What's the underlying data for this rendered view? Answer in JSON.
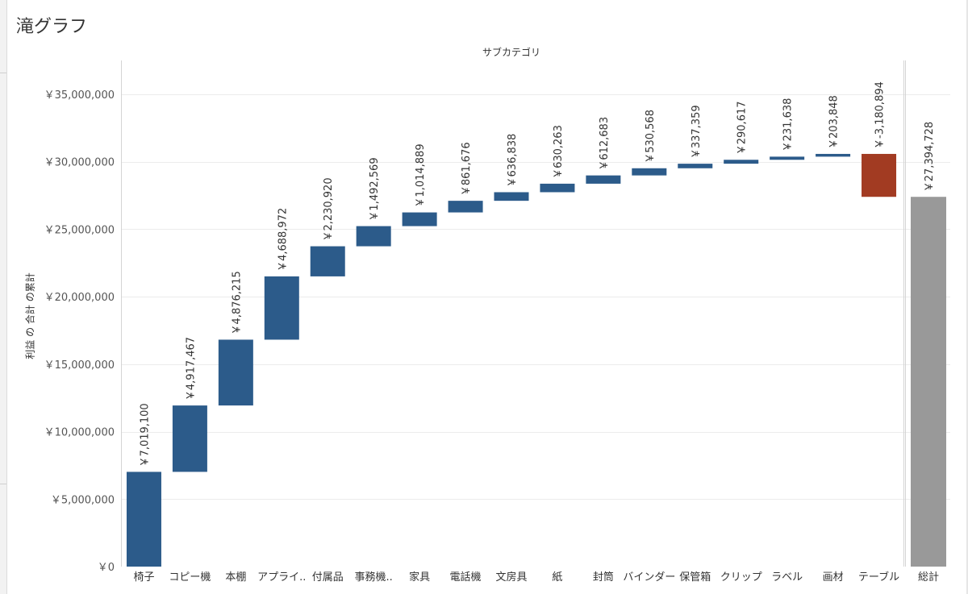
{
  "title": "滝グラフ",
  "chart_data": {
    "type": "waterfall",
    "column_header": "サブカテゴリ",
    "ylabel": "利益 の 合計 の累計",
    "ylim": [
      0,
      37500000
    ],
    "yticks": [
      0,
      5000000,
      10000000,
      15000000,
      20000000,
      25000000,
      30000000,
      35000000
    ],
    "ytick_labels": [
      "￥0",
      "￥5,000,000",
      "￥10,000,000",
      "￥15,000,000",
      "￥20,000,000",
      "￥25,000,000",
      "￥30,000,000",
      "￥35,000,000"
    ],
    "grid": true,
    "categories": [
      "椅子",
      "コピー機",
      "本棚",
      "アプライ..",
      "付属品",
      "事務機..",
      "家具",
      "電話機",
      "文房具",
      "紙",
      "封筒",
      "バインダー",
      "保管箱",
      "クリップ",
      "ラベル",
      "画材",
      "テーブル"
    ],
    "values": [
      7019100,
      4917467,
      4876215,
      4688972,
      2230920,
      1492569,
      1014889,
      861676,
      636838,
      630263,
      612683,
      530568,
      337359,
      290617,
      231638,
      203848,
      -3180894
    ],
    "value_labels": [
      "￥7,019,100",
      "￥4,917,467",
      "￥4,876,215",
      "￥4,688,972",
      "￥2,230,920",
      "￥1,492,569",
      "￥1,014,889",
      "￥861,676",
      "￥636,838",
      "￥630,263",
      "￥612,683",
      "￥530,568",
      "￥337,359",
      "￥290,617",
      "￥231,638",
      "￥203,848",
      "￥-3,180,894"
    ],
    "total": {
      "label": "総計",
      "value": 27394728,
      "value_label": "￥27,394,728"
    },
    "colors": {
      "positive": "#2c5b8a",
      "negative": "#a23b22",
      "total": "#999999",
      "grid": "#ececec",
      "axis": "#d4d4d4",
      "text": "#333333",
      "tick_text": "#555555"
    }
  }
}
